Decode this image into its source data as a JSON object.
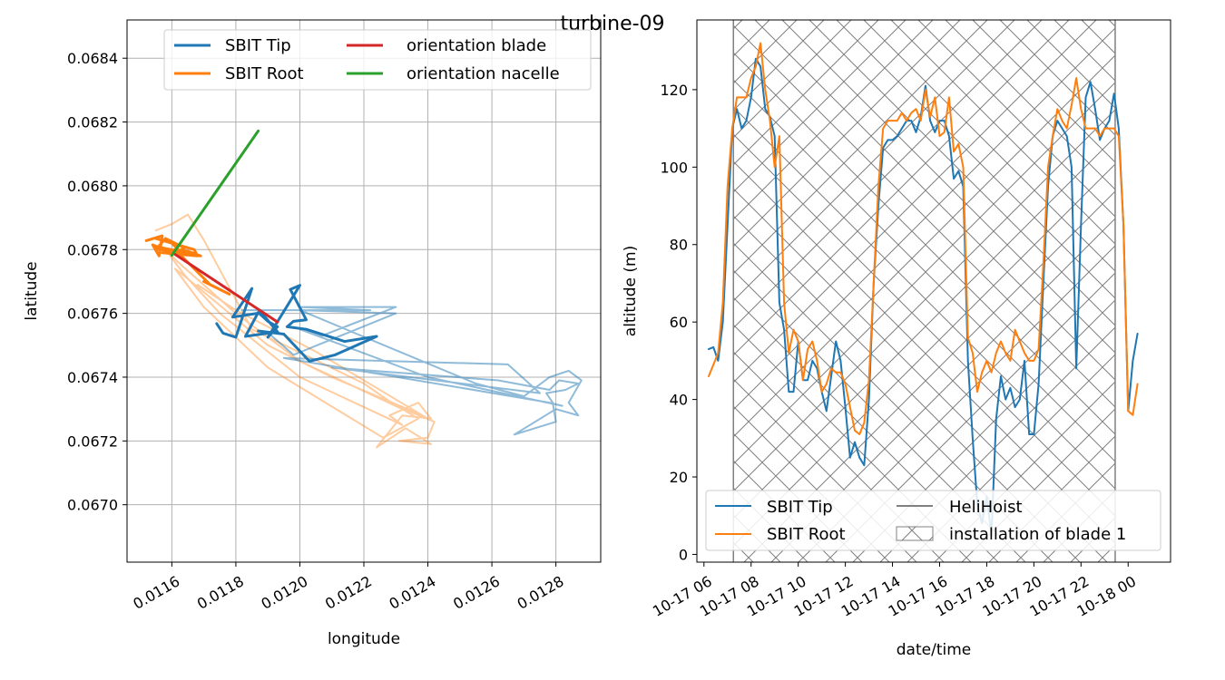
{
  "figure": {
    "suptitle": "turbine-09"
  },
  "chart_data": [
    {
      "type": "line",
      "xlabel": "longitude",
      "ylabel": "latitude",
      "xlim": [
        0.01146,
        0.01294
      ],
      "ylim": [
        0.06682,
        0.06852
      ],
      "xticks": [
        0.0116,
        0.0118,
        0.012,
        0.0122,
        0.0124,
        0.0126,
        0.0128
      ],
      "xtick_labels": [
        "0.0116",
        "0.0118",
        "0.0120",
        "0.0122",
        "0.0124",
        "0.0126",
        "0.0128"
      ],
      "yticks": [
        0.067,
        0.0672,
        0.0674,
        0.0676,
        0.0678,
        0.068,
        0.0682,
        0.0684
      ],
      "ytick_labels": [
        "0.0670",
        "0.0672",
        "0.0674",
        "0.0676",
        "0.0678",
        "0.0680",
        "0.0682",
        "0.0684"
      ],
      "grid": true,
      "legend": {
        "placement": "top-center",
        "columns": 2
      },
      "series": [
        {
          "name": "SBIT Tip",
          "color": "#1f77b4",
          "legend": true,
          "alpha": 1.0,
          "x": [
            0.01174,
            0.01176,
            0.0118,
            0.01185,
            0.01179,
            0.01188,
            0.01193,
            0.01183,
            0.01187,
            0.0119,
            0.01193,
            0.0119,
            0.012,
            0.01197,
            0.01202,
            0.01198,
            0.01196,
            0.01202,
            0.01214,
            0.01224,
            0.01211,
            0.01203,
            0.01195,
            0.01187
          ],
          "y": [
            0.067568,
            0.067538,
            0.067525,
            0.067678,
            0.067588,
            0.067602,
            0.067542,
            0.067528,
            0.067603,
            0.067575,
            0.067558,
            0.067525,
            0.067688,
            0.067675,
            0.06758,
            0.067575,
            0.067558,
            0.06755,
            0.067512,
            0.067528,
            0.06747,
            0.06745,
            0.067535,
            0.067545
          ]
        },
        {
          "name": "SBIT Tip (all)",
          "color": "#1f77b4",
          "legend": false,
          "alpha": 0.5,
          "x": [
            0.0119,
            0.01198,
            0.0123,
            0.012,
            0.01255,
            0.0127,
            0.01278,
            0.01284,
            0.01288,
            0.01284,
            0.01287,
            0.0128,
            0.01267,
            0.0128,
            0.01279,
            0.01277,
            0.01283,
            0.01287,
            0.01281,
            0.01278,
            0.01262,
            0.0121,
            0.01275,
            0.01265,
            0.01195,
            0.01278,
            0.01282,
            0.0124,
            0.012,
            0.01207,
            0.0123,
            0.012,
            0.01222,
            0.01182
          ],
          "y": [
            0.06754,
            0.06747,
            0.0676,
            0.06761,
            0.06738,
            0.06734,
            0.0674,
            0.06742,
            0.06739,
            0.06732,
            0.06728,
            0.0673,
            0.06722,
            0.06726,
            0.06732,
            0.06735,
            0.06736,
            0.06738,
            0.06739,
            0.06736,
            0.06739,
            0.06743,
            0.06735,
            0.06744,
            0.06746,
            0.06732,
            0.06731,
            0.0674,
            0.06755,
            0.06753,
            0.06762,
            0.06762,
            0.06761,
            0.06761
          ]
        },
        {
          "name": "SBIT Root",
          "color": "#ff7f0e",
          "legend": true,
          "alpha": 1.0,
          "x": [
            0.01152,
            0.01157,
            0.01156,
            0.01154,
            0.0116,
            0.01155,
            0.01162,
            0.01164,
            0.01158,
            0.01155,
            0.01165,
            0.01169,
            0.01163,
            0.0116,
            0.01155,
            0.01167,
            0.01168,
            0.01157,
            0.01161,
            0.01172,
            0.01178,
            0.0117
          ],
          "y": [
            0.067828,
            0.067843,
            0.06778,
            0.067815,
            0.06779,
            0.06781,
            0.067795,
            0.067805,
            0.067835,
            0.0678,
            0.067795,
            0.06778,
            0.06779,
            0.06782,
            0.067835,
            0.0678,
            0.06778,
            0.06779,
            0.0678,
            0.06769,
            0.06766,
            0.0677
          ]
        },
        {
          "name": "SBIT Root (all)",
          "color": "#ff7f0e",
          "legend": false,
          "alpha": 0.4,
          "x": [
            0.01155,
            0.0116,
            0.01165,
            0.0117,
            0.01185,
            0.0122,
            0.0123,
            0.01242,
            0.0124,
            0.01231,
            0.01241,
            0.01233,
            0.01224,
            0.01232,
            0.01241,
            0.01237,
            0.01228,
            0.01232,
            0.012,
            0.01175,
            0.01164,
            0.01158,
            0.01162,
            0.0118,
            0.012,
            0.01232,
            0.01237,
            0.01226,
            0.0119,
            0.0117,
            0.01161,
            0.01166,
            0.0119,
            0.0121,
            0.01236,
            0.0124,
            0.01205,
            0.0118,
            0.01168
          ],
          "y": [
            0.06786,
            0.06788,
            0.06791,
            0.06783,
            0.06755,
            0.06738,
            0.06731,
            0.06726,
            0.06721,
            0.0672,
            0.06719,
            0.06724,
            0.06718,
            0.06728,
            0.06727,
            0.06732,
            0.06728,
            0.06725,
            0.0674,
            0.0676,
            0.06772,
            0.0678,
            0.06776,
            0.0676,
            0.06745,
            0.0673,
            0.06727,
            0.06721,
            0.06743,
            0.06762,
            0.06774,
            0.0677,
            0.0675,
            0.0674,
            0.06729,
            0.06727,
            0.06748,
            0.06761,
            0.06769
          ]
        },
        {
          "name": "orientation blade",
          "color": "#d62728",
          "legend": true,
          "alpha": 1.0,
          "x": [
            0.01161,
            0.01193
          ],
          "y": [
            0.067785,
            0.067573
          ]
        },
        {
          "name": "orientation nacelle",
          "color": "#2ca02c",
          "legend": true,
          "alpha": 1.0,
          "x": [
            0.0116,
            0.01187
          ],
          "y": [
            0.067782,
            0.068172
          ]
        }
      ]
    },
    {
      "type": "line",
      "xlabel": "date/time",
      "ylabel": "altitude (m)",
      "x_unit": "hours from 2023-10-17 00:00",
      "xlim": [
        5.7,
        25.8
      ],
      "ylim": [
        -2,
        138
      ],
      "xticks": [
        6,
        8,
        10,
        12,
        14,
        16,
        18,
        20,
        22,
        24
      ],
      "xtick_labels": [
        "10-17 06",
        "10-17 08",
        "10-17 10",
        "10-17 12",
        "10-17 14",
        "10-17 16",
        "10-17 18",
        "10-17 20",
        "10-17 22",
        "10-18 00"
      ],
      "yticks": [
        0,
        20,
        40,
        60,
        80,
        100,
        120
      ],
      "ytick_labels": [
        "0",
        "20",
        "40",
        "60",
        "80",
        "100",
        "120"
      ],
      "grid": false,
      "legend": {
        "placement": "bottom",
        "columns": 2
      },
      "span": {
        "name": "installation of blade 1",
        "x": [
          7.25,
          23.45
        ],
        "hatch": "x",
        "color": "#808080"
      },
      "series": [
        {
          "name": "SBIT Tip",
          "color": "#1f77b4",
          "x": [
            6.2,
            6.4,
            6.6,
            6.8,
            7.0,
            7.2,
            7.4,
            7.6,
            7.8,
            8.0,
            8.2,
            8.4,
            8.6,
            8.8,
            9.0,
            9.2,
            9.4,
            9.6,
            9.8,
            10.0,
            10.2,
            10.4,
            10.6,
            10.8,
            11.0,
            11.2,
            11.4,
            11.6,
            11.8,
            12.0,
            12.2,
            12.4,
            12.6,
            12.8,
            13.0,
            13.2,
            13.4,
            13.6,
            13.8,
            14.0,
            14.2,
            14.4,
            14.6,
            14.8,
            15.0,
            15.2,
            15.4,
            15.6,
            15.8,
            16.0,
            16.2,
            16.4,
            16.6,
            16.8,
            17.0,
            17.2,
            17.4,
            17.6,
            17.8,
            18.0,
            18.2,
            18.4,
            18.6,
            18.8,
            19.0,
            19.2,
            19.4,
            19.6,
            19.8,
            20.0,
            20.2,
            20.4,
            20.6,
            20.8,
            21.0,
            21.2,
            21.4,
            21.6,
            21.8,
            22.0,
            22.2,
            22.4,
            22.6,
            22.8,
            23.0,
            23.2,
            23.4,
            23.6,
            23.8,
            24.0,
            24.2,
            24.4
          ],
          "y": [
            53,
            53.5,
            50,
            60,
            85,
            110,
            115,
            110,
            112,
            118,
            128,
            126,
            115,
            113,
            108,
            65,
            58,
            42,
            42,
            55,
            45,
            45,
            50,
            48,
            42,
            37,
            46,
            55,
            50,
            38,
            25,
            29,
            25,
            23,
            40,
            70,
            90,
            105,
            107,
            107,
            108,
            110,
            112,
            112,
            109,
            113,
            121,
            112,
            109,
            112,
            112,
            108,
            97,
            99,
            95,
            50,
            30,
            13,
            8,
            15,
            5,
            35,
            46,
            40,
            43,
            38,
            40,
            50,
            31,
            31,
            44,
            70,
            95,
            108,
            112,
            110,
            108,
            100,
            48,
            85,
            118,
            122,
            115,
            107,
            110,
            112,
            119,
            110,
            85,
            37,
            50,
            57
          ]
        },
        {
          "name": "SBIT Root",
          "color": "#ff7f0e",
          "x": [
            6.2,
            6.4,
            6.6,
            6.8,
            7.0,
            7.2,
            7.4,
            7.6,
            7.8,
            8.0,
            8.2,
            8.4,
            8.6,
            8.8,
            9.0,
            9.2,
            9.4,
            9.6,
            9.8,
            10.0,
            10.2,
            10.4,
            10.6,
            10.8,
            11.0,
            11.2,
            11.4,
            11.6,
            11.8,
            12.0,
            12.2,
            12.4,
            12.6,
            12.8,
            13.0,
            13.2,
            13.4,
            13.6,
            13.8,
            14.0,
            14.2,
            14.4,
            14.6,
            14.8,
            15.0,
            15.2,
            15.4,
            15.6,
            15.8,
            16.0,
            16.2,
            16.4,
            16.6,
            16.8,
            17.0,
            17.2,
            17.4,
            17.6,
            17.8,
            18.0,
            18.2,
            18.4,
            18.6,
            18.8,
            19.0,
            19.2,
            19.4,
            19.6,
            19.8,
            20.0,
            20.2,
            20.4,
            20.6,
            20.8,
            21.0,
            21.2,
            21.4,
            21.6,
            21.8,
            22.0,
            22.2,
            22.4,
            22.6,
            22.8,
            23.0,
            23.2,
            23.4,
            23.6,
            23.8,
            24.0,
            24.2,
            24.4
          ],
          "y": [
            46,
            49,
            52,
            65,
            95,
            110,
            118,
            118,
            118,
            123,
            126,
            132,
            120,
            112,
            100,
            108,
            65,
            52,
            58,
            55,
            45,
            53,
            55,
            50,
            42,
            44,
            48,
            47,
            47,
            44,
            38,
            32,
            31,
            34,
            45,
            70,
            95,
            110,
            112,
            112,
            112,
            114,
            112,
            114,
            115,
            112,
            120,
            113,
            118,
            108,
            109,
            118,
            104,
            106,
            100,
            56,
            52,
            42,
            47,
            50,
            47,
            52,
            55,
            52,
            50,
            58,
            55,
            52,
            50,
            50,
            53,
            75,
            100,
            108,
            115,
            112,
            110,
            116,
            123,
            115,
            110,
            110,
            110,
            108,
            110,
            110,
            110,
            108,
            85,
            37,
            36,
            44
          ]
        },
        {
          "name": "HeliHoist",
          "color": "#808080",
          "x": [],
          "y": []
        }
      ]
    }
  ]
}
